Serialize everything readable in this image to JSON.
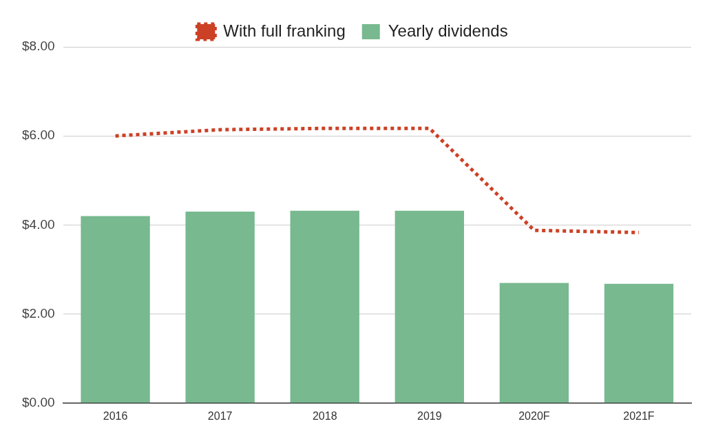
{
  "chart_data": {
    "type": "bar",
    "categories": [
      "2016",
      "2017",
      "2018",
      "2019",
      "2020F",
      "2021F"
    ],
    "series": [
      {
        "name": "Yearly dividends",
        "type": "bar",
        "color": "#78b98f",
        "values": [
          4.2,
          4.3,
          4.32,
          4.32,
          2.7,
          2.68
        ]
      },
      {
        "name": "With full franking",
        "type": "line",
        "color": "#cc4125",
        "line_style": "dotted",
        "values": [
          6.0,
          6.14,
          6.17,
          6.17,
          3.88,
          3.83
        ]
      }
    ],
    "ylim": [
      0,
      8
    ],
    "yticks": [
      {
        "value": 0,
        "label": "$0.00"
      },
      {
        "value": 2,
        "label": "$2.00"
      },
      {
        "value": 4,
        "label": "$4.00"
      },
      {
        "value": 6,
        "label": "$6.00"
      },
      {
        "value": 8,
        "label": "$8.00"
      }
    ],
    "grid": true,
    "legend": "top"
  }
}
